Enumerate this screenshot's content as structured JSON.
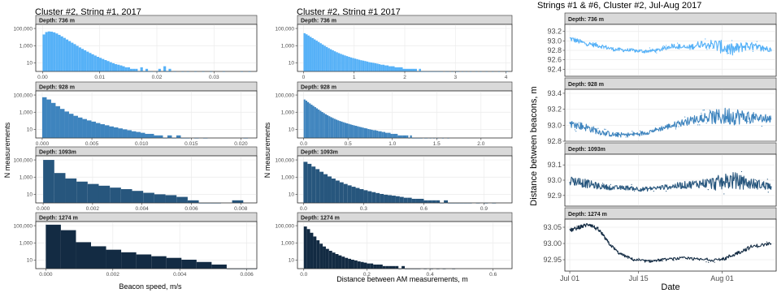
{
  "colors": {
    "depth_736": "#56B1F7",
    "depth_928": "#3E84BE",
    "depth_1093": "#27567D",
    "depth_1274": "#132B43",
    "strip_bg": "#D9D9D9",
    "grid": "#EBEBEB"
  },
  "chart_data": [
    {
      "type": "bar",
      "title": "Cluster #2, String #1, 2017",
      "xlabel": "Beacon speed, m/s",
      "ylabel": "N measurements",
      "y_scale": "log",
      "panels": [
        {
          "strip": "Depth: 736 m",
          "color": "#56B1F7",
          "xlim": [
            -0.0012,
            0.0375
          ],
          "xticks": [
            0,
            0.01,
            0.02,
            0.03
          ],
          "xtick_labels": [
            "0.00",
            "0.01",
            "0.02",
            "0.03"
          ],
          "yticks": [
            10,
            1000,
            100000
          ],
          "ytick_labels": [
            "10",
            "1,000",
            "100,000"
          ],
          "ylim": [
            1,
            300000
          ],
          "bin_start": 0,
          "bin_width": 0.00045,
          "counts": [
            20000,
            38000,
            45000,
            42000,
            35000,
            26000,
            18000,
            12000,
            8000,
            5200,
            3400,
            2200,
            1500,
            950,
            620,
            420,
            290,
            200,
            140,
            98,
            70,
            50,
            38,
            28,
            21,
            16,
            12,
            9,
            7,
            6,
            5,
            4,
            3,
            3,
            2,
            2,
            2,
            1,
            3,
            1,
            2,
            1,
            1,
            0,
            1,
            2,
            0,
            4,
            1,
            2,
            0,
            1,
            0,
            0,
            1,
            0,
            1,
            0,
            0,
            1,
            0,
            0,
            1,
            0,
            0,
            1,
            0,
            0,
            0,
            0,
            1,
            0,
            0,
            0,
            0,
            0,
            0,
            1,
            0,
            0,
            1
          ]
        },
        {
          "strip": "Depth: 928 m",
          "color": "#3E84BE",
          "xlim": [
            -0.00065,
            0.0216
          ],
          "xticks": [
            0,
            0.005,
            0.01,
            0.015,
            0.02
          ],
          "xtick_labels": [
            "0.000",
            "0.005",
            "0.010",
            "0.015",
            "0.020"
          ],
          "yticks": [
            10,
            1000,
            100000
          ],
          "ytick_labels": [
            "10",
            "1,000",
            "100,000"
          ],
          "ylim": [
            1,
            300000
          ],
          "bin_start": 0,
          "bin_width": 0.00045,
          "counts": [
            55000,
            30000,
            12000,
            5000,
            2400,
            1200,
            650,
            380,
            240,
            160,
            110,
            80,
            55,
            40,
            30,
            22,
            17,
            13,
            10,
            8,
            6,
            5,
            4,
            3,
            3,
            2,
            2,
            1,
            2,
            1,
            2,
            1,
            1,
            0,
            1,
            0,
            1,
            0,
            0,
            0,
            0,
            0,
            0,
            0,
            0,
            1
          ]
        },
        {
          "strip": "Depth: 1093m",
          "color": "#27567D",
          "xlim": [
            -0.0003,
            0.00865
          ],
          "xticks": [
            0,
            0.002,
            0.004,
            0.006,
            0.008
          ],
          "xtick_labels": [
            "0.000",
            "0.002",
            "0.004",
            "0.006",
            "0.008"
          ],
          "yticks": [
            10,
            1000,
            100000
          ],
          "ytick_labels": [
            "10",
            "1,000",
            "100,000"
          ],
          "ylim": [
            1,
            300000
          ],
          "bin_start": 0,
          "bin_width": 0.00045,
          "counts": [
            100000,
            3000,
            700,
            300,
            160,
            100,
            60,
            40,
            25,
            15,
            10,
            8,
            5,
            2,
            1,
            1,
            0,
            2
          ]
        },
        {
          "strip": "Depth: 1274 m",
          "color": "#132B43",
          "xlim": [
            -0.0003,
            0.0063
          ],
          "xticks": [
            0,
            0.002,
            0.004,
            0.006
          ],
          "xtick_labels": [
            "0.000",
            "0.002",
            "0.004",
            "0.006"
          ],
          "yticks": [
            10,
            1000,
            100000
          ],
          "ytick_labels": [
            "10",
            "1,000",
            "100,000"
          ],
          "ylim": [
            1,
            300000
          ],
          "bin_start": 0,
          "bin_width": 0.00045,
          "counts": [
            130000,
            30000,
            1200,
            400,
            160,
            80,
            45,
            28,
            18,
            11,
            6,
            3,
            1,
            1
          ]
        }
      ]
    },
    {
      "type": "bar",
      "title": "Cluster #2, String #1 2017",
      "xlabel": "Distance between AM measurements, m",
      "ylabel": "N measurements",
      "y_scale": "log",
      "panels": [
        {
          "strip": "Depth: 736 m",
          "color": "#56B1F7",
          "xlim": [
            -0.12,
            4.12
          ],
          "xticks": [
            0,
            1,
            2,
            3,
            4
          ],
          "xtick_labels": [
            "0",
            "1",
            "2",
            "3",
            "4"
          ],
          "yticks": [
            10,
            1000,
            100000
          ],
          "ytick_labels": [
            "10",
            "1,000",
            "100,000"
          ],
          "ylim": [
            1,
            300000
          ],
          "bin_start": 0,
          "bin_width": 0.04,
          "counts": [
            28000,
            21000,
            15000,
            10500,
            7500,
            5300,
            3800,
            2700,
            1900,
            1350,
            960,
            700,
            510,
            380,
            290,
            220,
            170,
            135,
            108,
            88,
            72,
            60,
            50,
            42,
            36,
            31,
            27,
            23,
            20,
            18,
            16,
            14,
            12,
            11,
            10,
            9,
            8,
            7,
            6,
            6,
            5,
            5,
            4,
            4,
            4,
            3,
            3,
            3,
            3,
            2,
            2,
            2,
            2,
            2,
            2,
            2,
            1,
            2,
            1,
            1,
            1,
            1,
            1,
            1,
            1,
            1,
            1,
            1,
            1,
            0,
            1,
            1,
            0,
            1,
            0,
            1,
            1,
            0,
            1,
            0,
            1,
            0,
            1,
            0,
            0,
            1,
            0,
            1,
            0,
            0,
            1,
            0,
            0,
            1,
            0,
            0,
            1,
            0,
            0,
            0,
            1
          ]
        },
        {
          "strip": "Depth: 928 m",
          "color": "#3E84BE",
          "xlim": [
            -0.07,
            2.35
          ],
          "xticks": [
            0,
            0.5,
            1,
            1.5,
            2
          ],
          "xtick_labels": [
            "0.0",
            "0.5",
            "1.0",
            "1.5",
            "2.0"
          ],
          "yticks": [
            10,
            1000,
            100000
          ],
          "ytick_labels": [
            "10",
            "1,000",
            "100,000"
          ],
          "ylim": [
            1,
            300000
          ],
          "bin_start": 0,
          "bin_width": 0.02,
          "counts": [
            30000,
            22000,
            15000,
            10500,
            7500,
            5400,
            3900,
            2800,
            2000,
            1450,
            1050,
            780,
            580,
            440,
            340,
            265,
            210,
            168,
            136,
            112,
            94,
            80,
            68,
            58,
            50,
            44,
            38,
            33,
            29,
            26,
            23,
            20,
            18,
            16,
            14,
            13,
            11,
            10,
            9,
            8,
            8,
            7,
            6,
            6,
            5,
            5,
            4,
            4,
            4,
            3,
            3,
            3,
            3,
            2,
            2,
            2,
            2,
            2,
            2,
            1,
            2,
            1,
            1,
            1,
            1,
            1,
            1,
            0,
            1,
            1,
            0,
            1,
            0,
            1,
            0,
            1,
            0,
            0,
            1,
            0,
            0,
            1
          ]
        },
        {
          "strip": "Depth: 1093m",
          "color": "#27567D",
          "xlim": [
            -0.03,
            1.04
          ],
          "xticks": [
            0,
            0.3,
            0.6,
            0.9
          ],
          "xtick_labels": [
            "0.0",
            "0.3",
            "0.6",
            "0.9"
          ],
          "yticks": [
            10,
            1000,
            100000
          ],
          "ytick_labels": [
            "10",
            "1,000",
            "100,000"
          ],
          "ylim": [
            1,
            300000
          ],
          "bin_start": 0,
          "bin_width": 0.02,
          "counts": [
            60000,
            35000,
            17000,
            8500,
            4200,
            2200,
            1200,
            680,
            400,
            250,
            160,
            110,
            76,
            55,
            40,
            30,
            23,
            18,
            14,
            11,
            9,
            8,
            7,
            6,
            5,
            4,
            4,
            3,
            3,
            3,
            2,
            2,
            2,
            2,
            1,
            2,
            1,
            1,
            1,
            1,
            1,
            1,
            0,
            1,
            0,
            1,
            0,
            1
          ]
        },
        {
          "strip": "Depth: 1274 m",
          "color": "#132B43",
          "xlim": [
            -0.02,
            0.66
          ],
          "xticks": [
            0,
            0.2,
            0.4,
            0.6
          ],
          "xtick_labels": [
            "0.0",
            "0.2",
            "0.4",
            "0.6"
          ],
          "yticks": [
            10,
            1000,
            100000
          ],
          "ytick_labels": [
            "10",
            "1,000",
            "100,000"
          ],
          "ylim": [
            1,
            300000
          ],
          "bin_start": 0,
          "bin_width": 0.01,
          "counts": [
            80000,
            40000,
            15000,
            5500,
            2000,
            800,
            380,
            200,
            120,
            75,
            50,
            35,
            25,
            18,
            14,
            11,
            9,
            7,
            6,
            5,
            4,
            4,
            3,
            3,
            3,
            2,
            2,
            2,
            2,
            2,
            1,
            2,
            1,
            1,
            1,
            1,
            1,
            0,
            1,
            0,
            1,
            0,
            1,
            0,
            1,
            0,
            0,
            1
          ]
        }
      ]
    },
    {
      "type": "scatter",
      "title": "Strings #1 & #6, Cluster #2, Jul-Aug 2017",
      "xlabel": "Date",
      "ylabel": "Distance between beacons, m",
      "x_range": [
        "2017-06-30",
        "2017-08-12"
      ],
      "xticks": [
        "2017-07-01",
        "2017-07-15",
        "2017-08-01"
      ],
      "xtick_labels": [
        "Jul 01",
        "Jul 15",
        "Aug 01"
      ],
      "panels": [
        {
          "strip": "Depth: 736 m",
          "color": "#56B1F7",
          "ylim": [
            92.25,
            93.35
          ],
          "yticks": [
            92.4,
            92.6,
            92.8,
            93.0,
            93.2
          ],
          "ytick_labels": [
            "92.4",
            "92.6",
            "92.8",
            "93.0",
            "93.2"
          ],
          "x": [
            "2017-07-01",
            "2017-07-04",
            "2017-07-07",
            "2017-07-10",
            "2017-07-13",
            "2017-07-16",
            "2017-07-19",
            "2017-07-22",
            "2017-07-25",
            "2017-07-28",
            "2017-07-31",
            "2017-08-03",
            "2017-08-06",
            "2017-08-09",
            "2017-08-11"
          ],
          "y": [
            93.05,
            92.95,
            92.9,
            92.82,
            92.8,
            92.78,
            92.8,
            92.9,
            92.85,
            92.95,
            92.9,
            92.8,
            92.9,
            92.85,
            92.82
          ],
          "spread": [
            0.06,
            0.05,
            0.05,
            0.04,
            0.04,
            0.04,
            0.04,
            0.05,
            0.06,
            0.08,
            0.14,
            0.14,
            0.1,
            0.07,
            0.05
          ]
        },
        {
          "strip": "Depth: 928 m",
          "color": "#3E84BE",
          "ylim": [
            92.8,
            93.45
          ],
          "yticks": [
            92.8,
            93.0,
            93.2,
            93.4
          ],
          "ytick_labels": [
            "92.8",
            "93.0",
            "93.2",
            "93.4"
          ],
          "x": [
            "2017-07-01",
            "2017-07-04",
            "2017-07-07",
            "2017-07-10",
            "2017-07-13",
            "2017-07-16",
            "2017-07-19",
            "2017-07-22",
            "2017-07-25",
            "2017-07-28",
            "2017-07-31",
            "2017-08-03",
            "2017-08-06",
            "2017-08-09",
            "2017-08-11"
          ],
          "y": [
            93.02,
            92.98,
            92.92,
            92.88,
            92.88,
            92.9,
            92.95,
            93.0,
            93.05,
            93.1,
            93.1,
            93.12,
            93.1,
            93.08,
            93.08
          ],
          "spread": [
            0.05,
            0.05,
            0.04,
            0.03,
            0.03,
            0.03,
            0.03,
            0.04,
            0.05,
            0.06,
            0.1,
            0.12,
            0.08,
            0.06,
            0.05
          ]
        },
        {
          "strip": "Depth: 1093m",
          "color": "#27567D",
          "ylim": [
            92.83,
            93.17
          ],
          "yticks": [
            92.9,
            93.0,
            93.1
          ],
          "ytick_labels": [
            "92.9",
            "93.0",
            "93.1"
          ],
          "x": [
            "2017-07-01",
            "2017-07-04",
            "2017-07-07",
            "2017-07-10",
            "2017-07-13",
            "2017-07-16",
            "2017-07-19",
            "2017-07-22",
            "2017-07-25",
            "2017-07-28",
            "2017-07-31",
            "2017-08-03",
            "2017-08-06",
            "2017-08-09",
            "2017-08-11"
          ],
          "y": [
            93.0,
            92.98,
            92.96,
            92.95,
            92.95,
            92.94,
            92.95,
            92.96,
            92.97,
            92.98,
            92.98,
            93.0,
            92.98,
            92.97,
            92.96
          ],
          "spread": [
            0.03,
            0.03,
            0.02,
            0.015,
            0.015,
            0.015,
            0.015,
            0.02,
            0.025,
            0.03,
            0.05,
            0.06,
            0.04,
            0.03,
            0.025
          ]
        },
        {
          "strip": "Depth: 1274 m",
          "color": "#132B43",
          "ylim": [
            92.915,
            93.075
          ],
          "yticks": [
            92.95,
            93.0,
            93.05
          ],
          "ytick_labels": [
            "92.95",
            "93.00",
            "93.05"
          ],
          "x": [
            "2017-07-01",
            "2017-07-03",
            "2017-07-05",
            "2017-07-07",
            "2017-07-09",
            "2017-07-11",
            "2017-07-14",
            "2017-07-17",
            "2017-07-20",
            "2017-07-24",
            "2017-07-28",
            "2017-08-01",
            "2017-08-04",
            "2017-08-07",
            "2017-08-11"
          ],
          "y": [
            93.04,
            93.05,
            93.06,
            93.04,
            93.0,
            92.97,
            92.95,
            92.945,
            92.95,
            92.955,
            92.95,
            92.95,
            92.97,
            92.99,
            93.0
          ],
          "spread": [
            0.006,
            0.006,
            0.006,
            0.006,
            0.005,
            0.004,
            0.004,
            0.004,
            0.004,
            0.004,
            0.005,
            0.006,
            0.006,
            0.006,
            0.005
          ]
        }
      ]
    }
  ]
}
